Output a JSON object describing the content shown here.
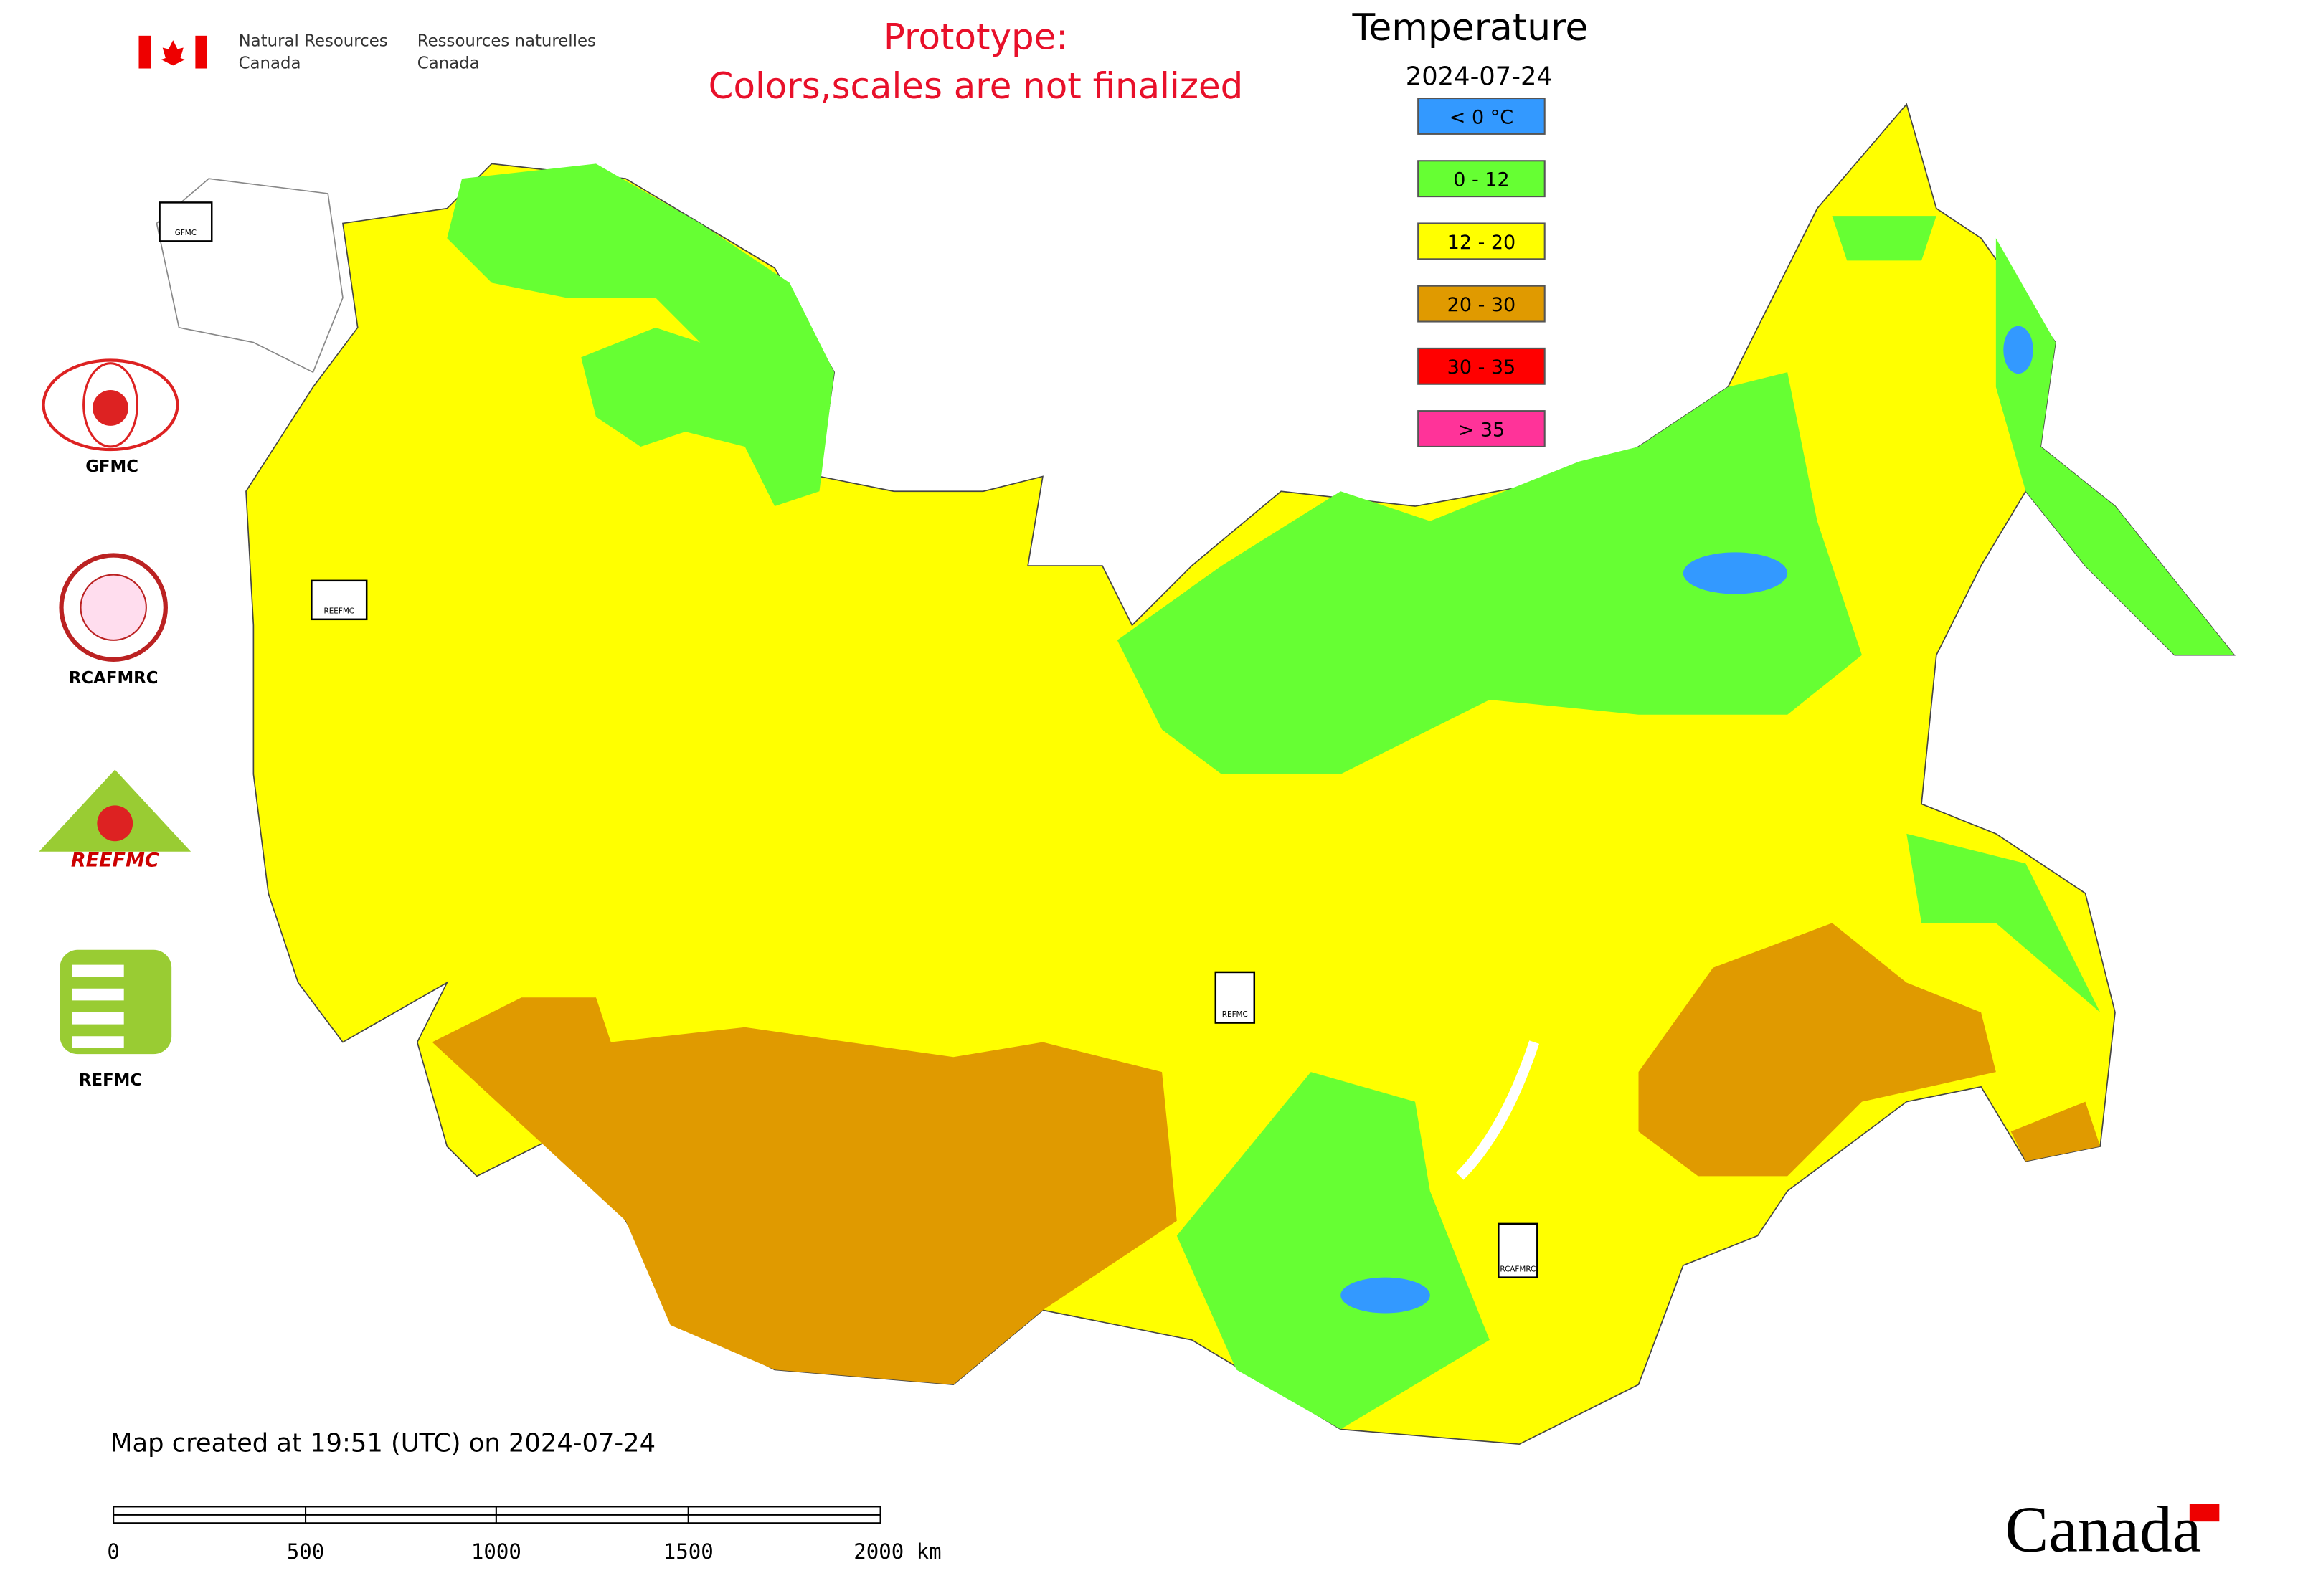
{
  "header": {
    "dept_en": [
      "Natural Resources",
      "Canada"
    ],
    "dept_fr": [
      "Ressources naturelles",
      "Canada"
    ]
  },
  "notice": [
    "Prototype:",
    "Colors,scales are not finalized"
  ],
  "legend": {
    "title": "Temperature",
    "date": "2024-07-24",
    "items": [
      {
        "label": "< 0 °C",
        "color": "#3399ff"
      },
      {
        "label": "0 - 12",
        "color": "#66ff33"
      },
      {
        "label": "12 - 20",
        "color": "#ffff00"
      },
      {
        "label": "20 - 30",
        "color": "#e09a00"
      },
      {
        "label": "30 - 35",
        "color": "#ff0000"
      },
      {
        "label": "> 35",
        "color": "#ff3399"
      }
    ]
  },
  "side_logos": {
    "gfmc": "GFMC",
    "rcafmrc": "RCAFMRC",
    "reefmc": "REEFMC",
    "refmc": "REFMC"
  },
  "map_markers": [
    "GFMC",
    "REEFMC",
    "REFMC",
    "RCAFMRC"
  ],
  "footer": "Map created at 19:51 (UTC) on 2024-07-24",
  "scale_bar": [
    "0",
    "500",
    "1000",
    "1500",
    "2000 km"
  ],
  "wordmark": "Canada"
}
